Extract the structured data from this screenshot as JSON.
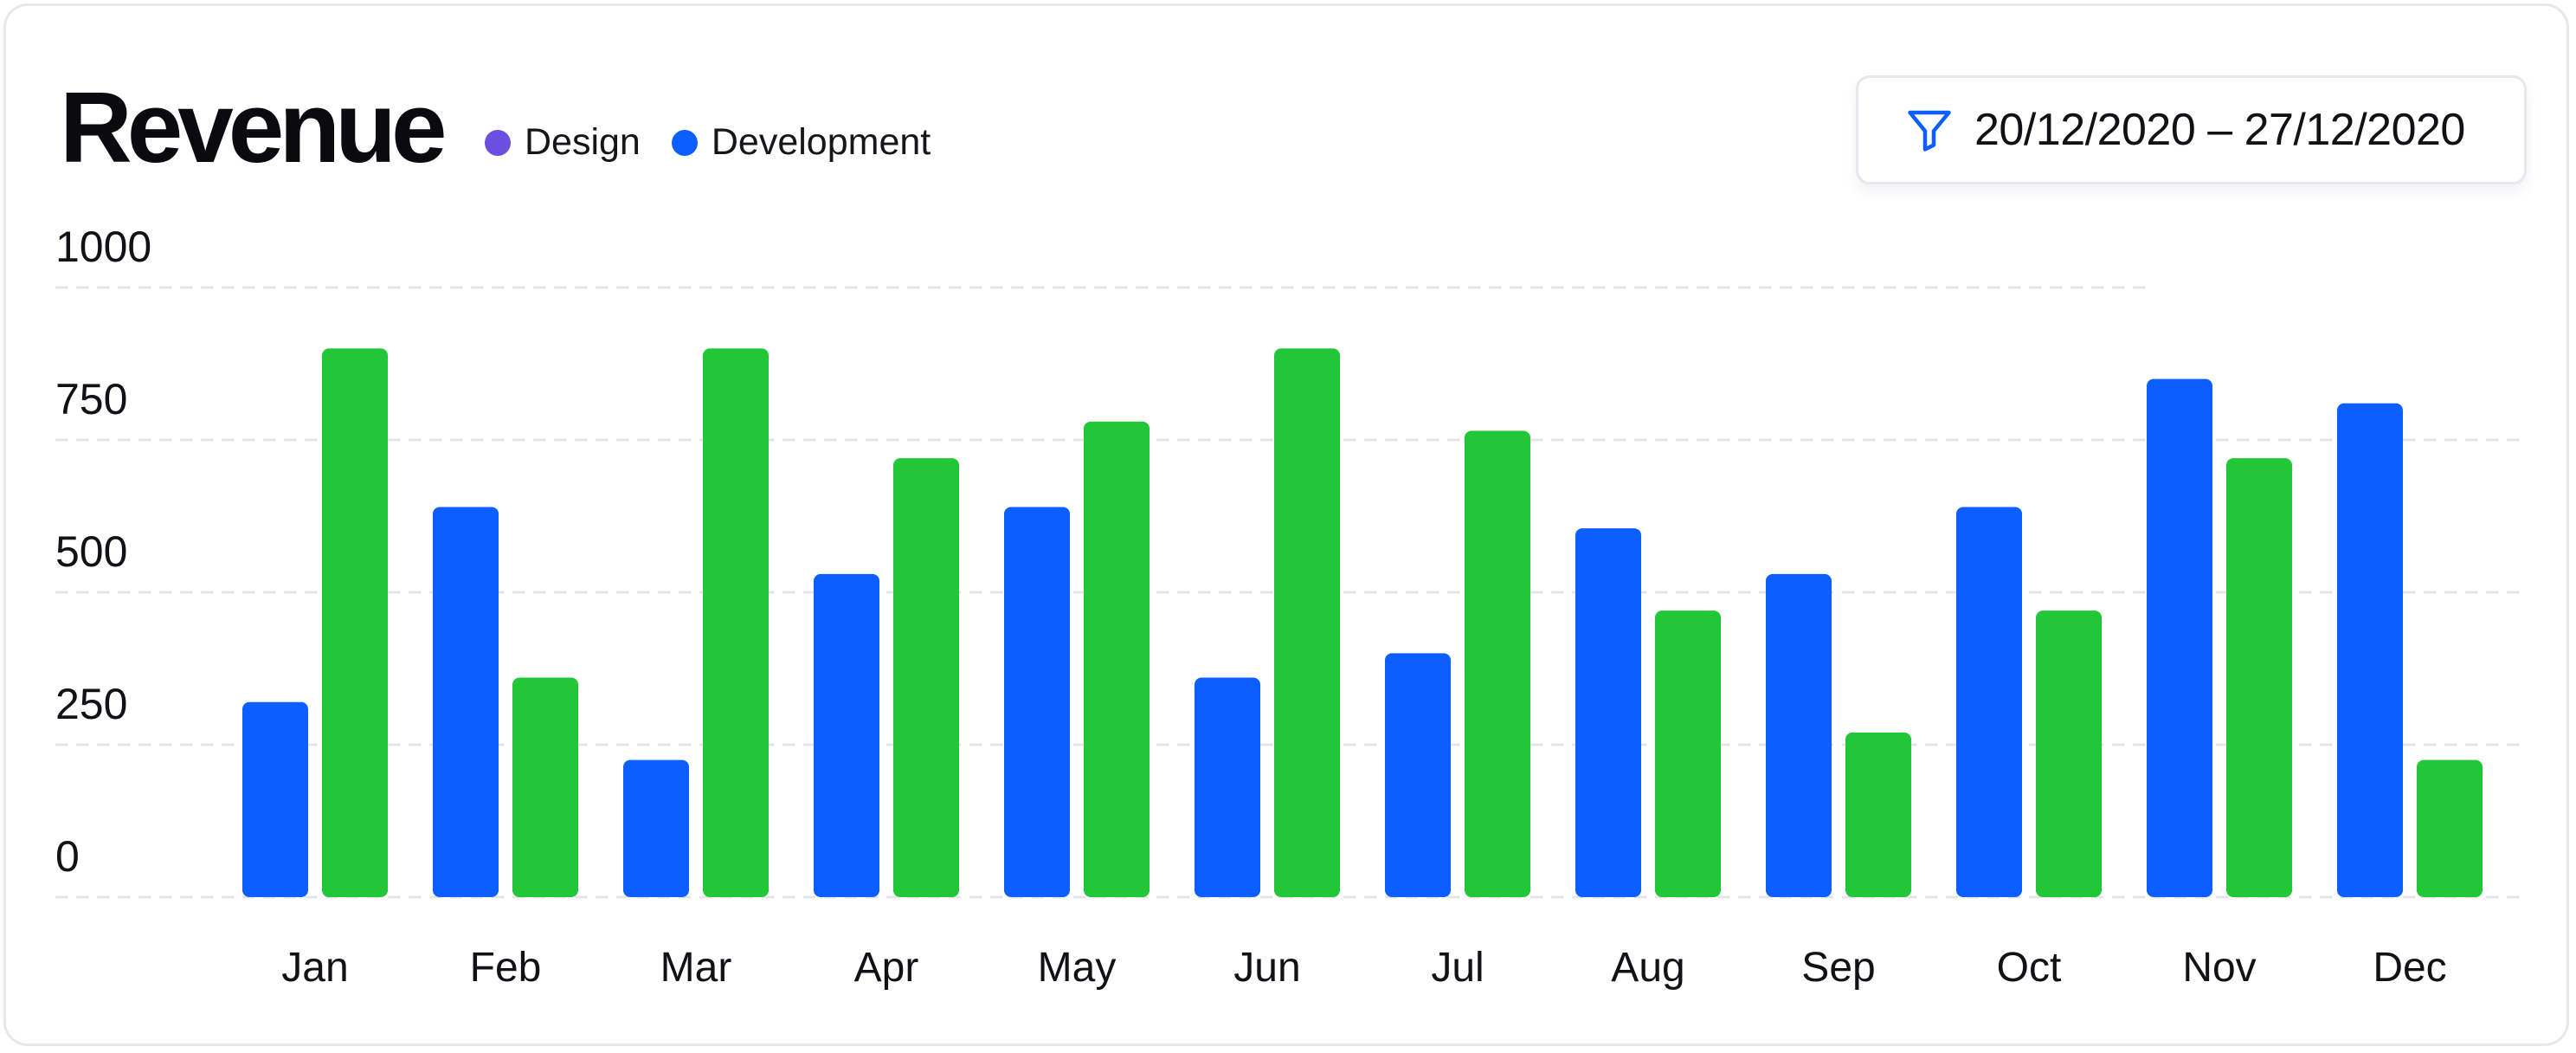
{
  "title": "Revenue",
  "legend": [
    {
      "label": "Design",
      "color": "#6a4fe0"
    },
    {
      "label": "Development",
      "color": "#0d5efe"
    }
  ],
  "filter": {
    "label": "20/12/2020 – 27/12/2020",
    "icon": "funnel-icon",
    "color": "#0d5efe"
  },
  "chart_data": {
    "type": "bar",
    "categories": [
      "Jan",
      "Feb",
      "Mar",
      "Apr",
      "May",
      "Jun",
      "Jul",
      "Aug",
      "Sep",
      "Oct",
      "Nov",
      "Dec"
    ],
    "series": [
      {
        "color": "#0d5efe",
        "values": [
          320,
          640,
          225,
          530,
          640,
          360,
          400,
          605,
          530,
          640,
          850,
          810
        ]
      },
      {
        "color": "#22c738",
        "values": [
          900,
          360,
          900,
          720,
          780,
          900,
          765,
          470,
          270,
          470,
          720,
          225
        ]
      }
    ],
    "ylim": [
      0,
      1000
    ],
    "yticks": [
      0,
      250,
      500,
      750,
      1000
    ],
    "grid": true
  }
}
